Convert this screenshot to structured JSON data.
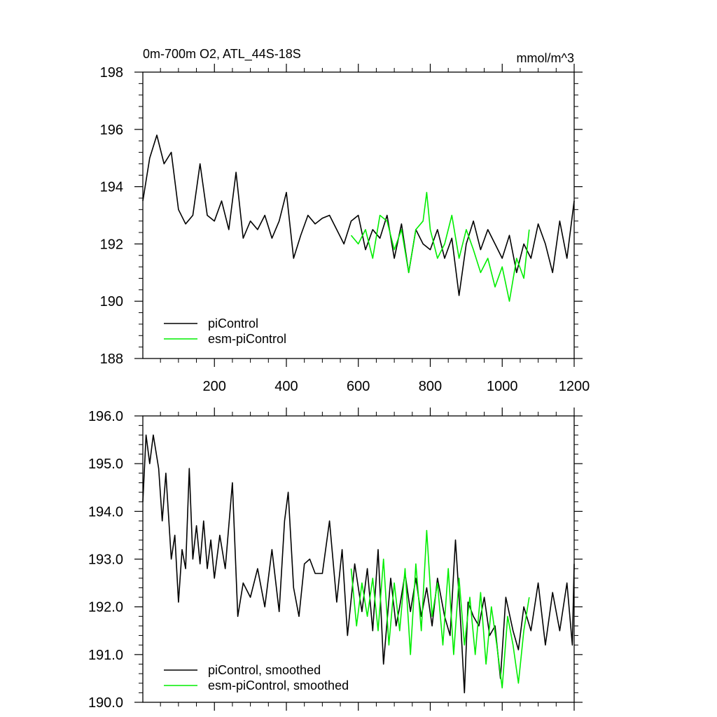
{
  "chart_data": [
    {
      "type": "line",
      "title": "0m-700m O2, ATL_44S-18S",
      "units": "mmol/m^3",
      "xlabel": "",
      "ylabel": "",
      "xlim": [
        1,
        1200
      ],
      "ylim": [
        188,
        198
      ],
      "xticks": [
        200,
        400,
        600,
        800,
        1000,
        1200
      ],
      "yticks": [
        188,
        190,
        192,
        194,
        196,
        198
      ],
      "ytick_labels": [
        "188",
        "190",
        "192",
        "194",
        "196",
        "198"
      ],
      "legend_position": "bottom-left",
      "series": [
        {
          "name": "piControl",
          "color": "#000000",
          "x": [
            1,
            20,
            40,
            60,
            80,
            100,
            120,
            140,
            160,
            180,
            200,
            220,
            240,
            260,
            280,
            300,
            320,
            340,
            360,
            380,
            400,
            420,
            440,
            460,
            480,
            500,
            520,
            540,
            560,
            580,
            600,
            620,
            640,
            660,
            680,
            700,
            720,
            740,
            760,
            780,
            800,
            820,
            840,
            860,
            880,
            900,
            920,
            940,
            960,
            980,
            1000,
            1020,
            1040,
            1060,
            1080,
            1100,
            1120,
            1140,
            1160,
            1180,
            1200
          ],
          "values": [
            193.5,
            195.0,
            195.8,
            194.8,
            195.2,
            193.2,
            192.7,
            193.0,
            194.8,
            193.0,
            192.8,
            193.5,
            192.5,
            194.5,
            192.2,
            192.8,
            192.5,
            193.0,
            192.2,
            192.8,
            193.8,
            191.5,
            192.3,
            193.0,
            192.7,
            192.9,
            193.0,
            192.5,
            192.0,
            192.8,
            193.0,
            191.8,
            192.5,
            192.2,
            193.0,
            191.5,
            192.7,
            191.0,
            192.5,
            192.0,
            191.8,
            192.5,
            191.5,
            192.2,
            190.2,
            192.0,
            192.8,
            191.8,
            192.5,
            192.0,
            191.5,
            192.3,
            191.0,
            192.0,
            191.5,
            192.7,
            192.0,
            191.0,
            192.8,
            191.5,
            193.5
          ]
        },
        {
          "name": "esm-piControl",
          "color": "#00ee00",
          "x": [
            580,
            600,
            620,
            640,
            660,
            680,
            700,
            720,
            740,
            760,
            780,
            790,
            800,
            820,
            840,
            860,
            880,
            900,
            920,
            940,
            960,
            980,
            1000,
            1020,
            1040,
            1060,
            1075
          ],
          "values": [
            192.3,
            192.0,
            192.5,
            191.5,
            193.0,
            192.8,
            191.8,
            192.5,
            191.0,
            192.5,
            192.8,
            193.8,
            192.5,
            191.5,
            192.0,
            193.0,
            191.5,
            192.5,
            191.8,
            191.0,
            191.5,
            190.5,
            191.2,
            190.0,
            191.5,
            190.8,
            192.5
          ]
        }
      ]
    },
    {
      "type": "line",
      "title": "",
      "xlabel": "",
      "ylabel": "",
      "xlim": [
        1,
        1200
      ],
      "ylim": [
        190.0,
        196.0
      ],
      "xticks": [
        200,
        400,
        600,
        800,
        1000,
        1200
      ],
      "yticks": [
        190.0,
        191.0,
        192.0,
        193.0,
        194.0,
        195.0,
        196.0
      ],
      "ytick_labels": [
        "190.0",
        "191.0",
        "192.0",
        "193.0",
        "194.0",
        "195.0",
        "196.0"
      ],
      "legend_position": "bottom-left",
      "series": [
        {
          "name": "piControl, smoothed",
          "color": "#000000",
          "x": [
            1,
            10,
            20,
            30,
            45,
            55,
            65,
            80,
            90,
            100,
            110,
            120,
            130,
            140,
            150,
            160,
            170,
            180,
            190,
            200,
            215,
            230,
            250,
            265,
            280,
            300,
            320,
            340,
            360,
            380,
            395,
            405,
            420,
            435,
            450,
            465,
            480,
            500,
            520,
            540,
            555,
            570,
            590,
            610,
            625,
            640,
            655,
            670,
            690,
            705,
            715,
            730,
            745,
            760,
            775,
            790,
            805,
            820,
            840,
            855,
            870,
            885,
            895,
            905,
            920,
            935,
            950,
            965,
            980,
            995,
            1010,
            1030,
            1045,
            1060,
            1080,
            1100,
            1120,
            1140,
            1160,
            1180,
            1195,
            1200
          ],
          "values": [
            194.2,
            195.6,
            195.0,
            195.6,
            194.9,
            193.8,
            194.8,
            193.0,
            193.5,
            192.1,
            193.2,
            192.8,
            194.9,
            193.0,
            193.7,
            192.9,
            193.8,
            192.8,
            193.4,
            192.6,
            193.5,
            192.8,
            194.6,
            191.8,
            192.5,
            192.2,
            192.8,
            192.0,
            193.2,
            191.9,
            193.8,
            194.4,
            192.4,
            191.8,
            192.9,
            193.0,
            192.7,
            192.7,
            193.8,
            192.1,
            193.2,
            191.4,
            192.9,
            191.9,
            192.8,
            191.5,
            193.2,
            190.8,
            192.6,
            191.6,
            192.0,
            192.7,
            191.9,
            192.6,
            191.8,
            192.4,
            191.6,
            192.6,
            191.8,
            191.4,
            193.4,
            191.6,
            190.2,
            192.1,
            191.8,
            191.6,
            192.2,
            191.4,
            191.6,
            190.5,
            192.2,
            191.5,
            191.1,
            192.0,
            191.5,
            192.5,
            191.2,
            192.3,
            191.5,
            192.5,
            191.2,
            192.9
          ]
        },
        {
          "name": "esm-piControl, smoothed",
          "color": "#00ee00",
          "x": [
            580,
            595,
            610,
            625,
            640,
            655,
            670,
            685,
            700,
            715,
            730,
            745,
            760,
            775,
            790,
            805,
            820,
            835,
            850,
            865,
            880,
            895,
            910,
            925,
            940,
            955,
            970,
            985,
            1000,
            1015,
            1030,
            1045,
            1060,
            1075
          ],
          "values": [
            192.8,
            191.6,
            192.5,
            191.8,
            192.6,
            191.5,
            193.0,
            191.2,
            192.5,
            191.5,
            192.8,
            191.0,
            192.9,
            191.5,
            193.6,
            191.8,
            192.5,
            191.2,
            192.8,
            191.0,
            192.6,
            191.2,
            192.2,
            191.0,
            192.3,
            190.8,
            192.0,
            191.2,
            190.3,
            191.8,
            191.2,
            190.4,
            191.5,
            192.2
          ]
        }
      ]
    }
  ]
}
